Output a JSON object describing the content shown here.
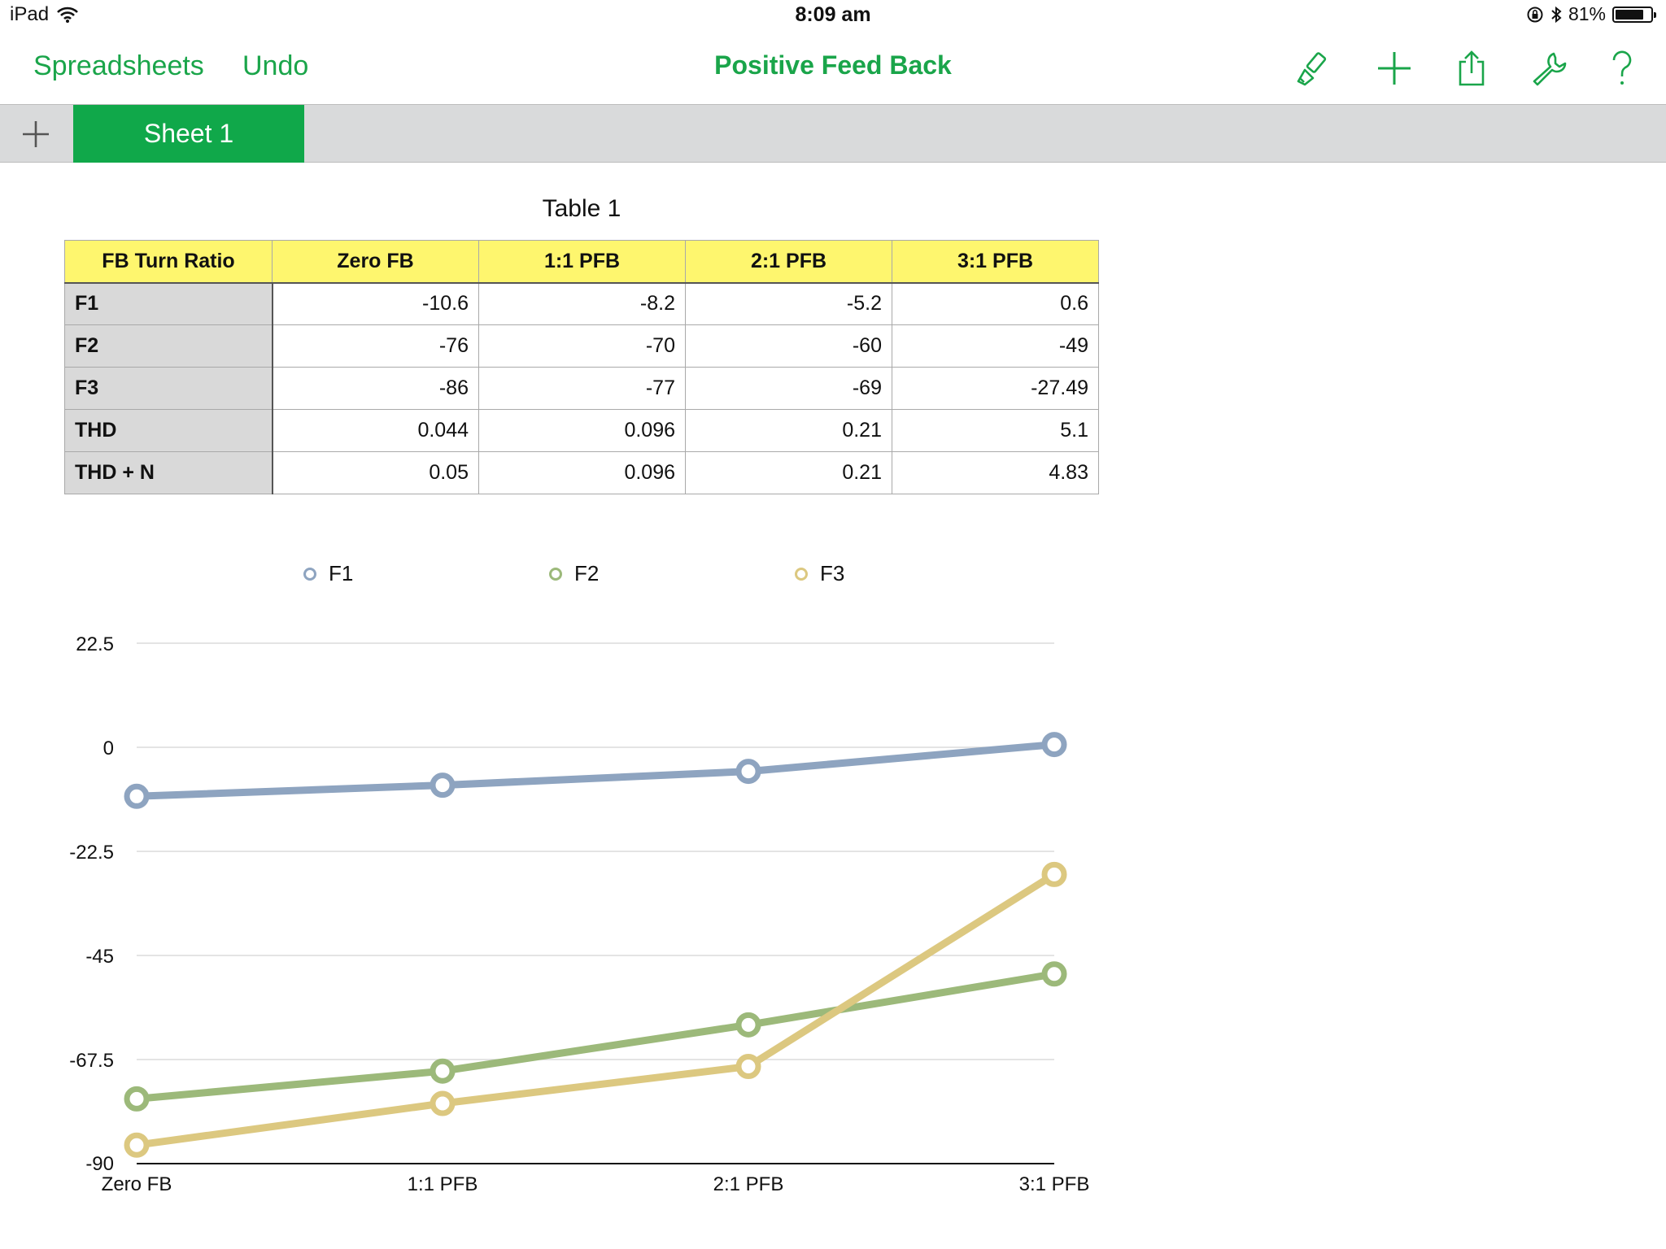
{
  "status_bar": {
    "device": "iPad",
    "time": "8:09 am",
    "battery_percent": "81%",
    "battery_level": 0.81
  },
  "nav": {
    "spreadsheets_label": "Spreadsheets",
    "undo_label": "Undo",
    "title": "Positive Feed Back",
    "icons": [
      "paintbrush-icon",
      "plus-icon",
      "share-icon",
      "wrench-icon",
      "help-icon"
    ]
  },
  "tabs": {
    "active_label": "Sheet 1"
  },
  "colors": {
    "accent": "#1aa54a",
    "tab_active": "#10a84a",
    "header_fill": "#fef66e",
    "row_header_fill": "#d9d9d9"
  },
  "table": {
    "title": "Table 1",
    "columns": [
      "FB Turn Ratio",
      "Zero FB",
      "1:1 PFB",
      "2:1 PFB",
      "3:1 PFB"
    ],
    "rows": [
      {
        "label": "F1",
        "values": [
          "-10.6",
          "-8.2",
          "-5.2",
          "0.6"
        ]
      },
      {
        "label": "F2",
        "values": [
          "-76",
          "-70",
          "-60",
          "-49"
        ]
      },
      {
        "label": "F3",
        "values": [
          "-86",
          "-77",
          "-69",
          "-27.49"
        ]
      },
      {
        "label": "THD",
        "values": [
          "0.044",
          "0.096",
          "0.21",
          "5.1"
        ]
      },
      {
        "label": "THD + N",
        "values": [
          "0.05",
          "0.096",
          "0.21",
          "4.83"
        ]
      }
    ]
  },
  "chart_data": {
    "type": "line",
    "title": "",
    "xlabel": "",
    "ylabel": "",
    "categories": [
      "Zero FB",
      "1:1 PFB",
      "2:1 PFB",
      "3:1 PFB"
    ],
    "series": [
      {
        "name": "F1",
        "values": [
          -10.6,
          -8.2,
          -5.2,
          0.6
        ],
        "color": "#8ea4c0"
      },
      {
        "name": "F2",
        "values": [
          -76,
          -70,
          -60,
          -49
        ],
        "color": "#9cb97a"
      },
      {
        "name": "F3",
        "values": [
          -86,
          -77,
          -69,
          -27.49
        ],
        "color": "#dcc880"
      }
    ],
    "yticks": [
      "22.5",
      "0",
      "-22.5",
      "-45",
      "-67.5",
      "-90"
    ],
    "ylim": [
      -90,
      22.5
    ],
    "grid": true,
    "legend": "top"
  }
}
